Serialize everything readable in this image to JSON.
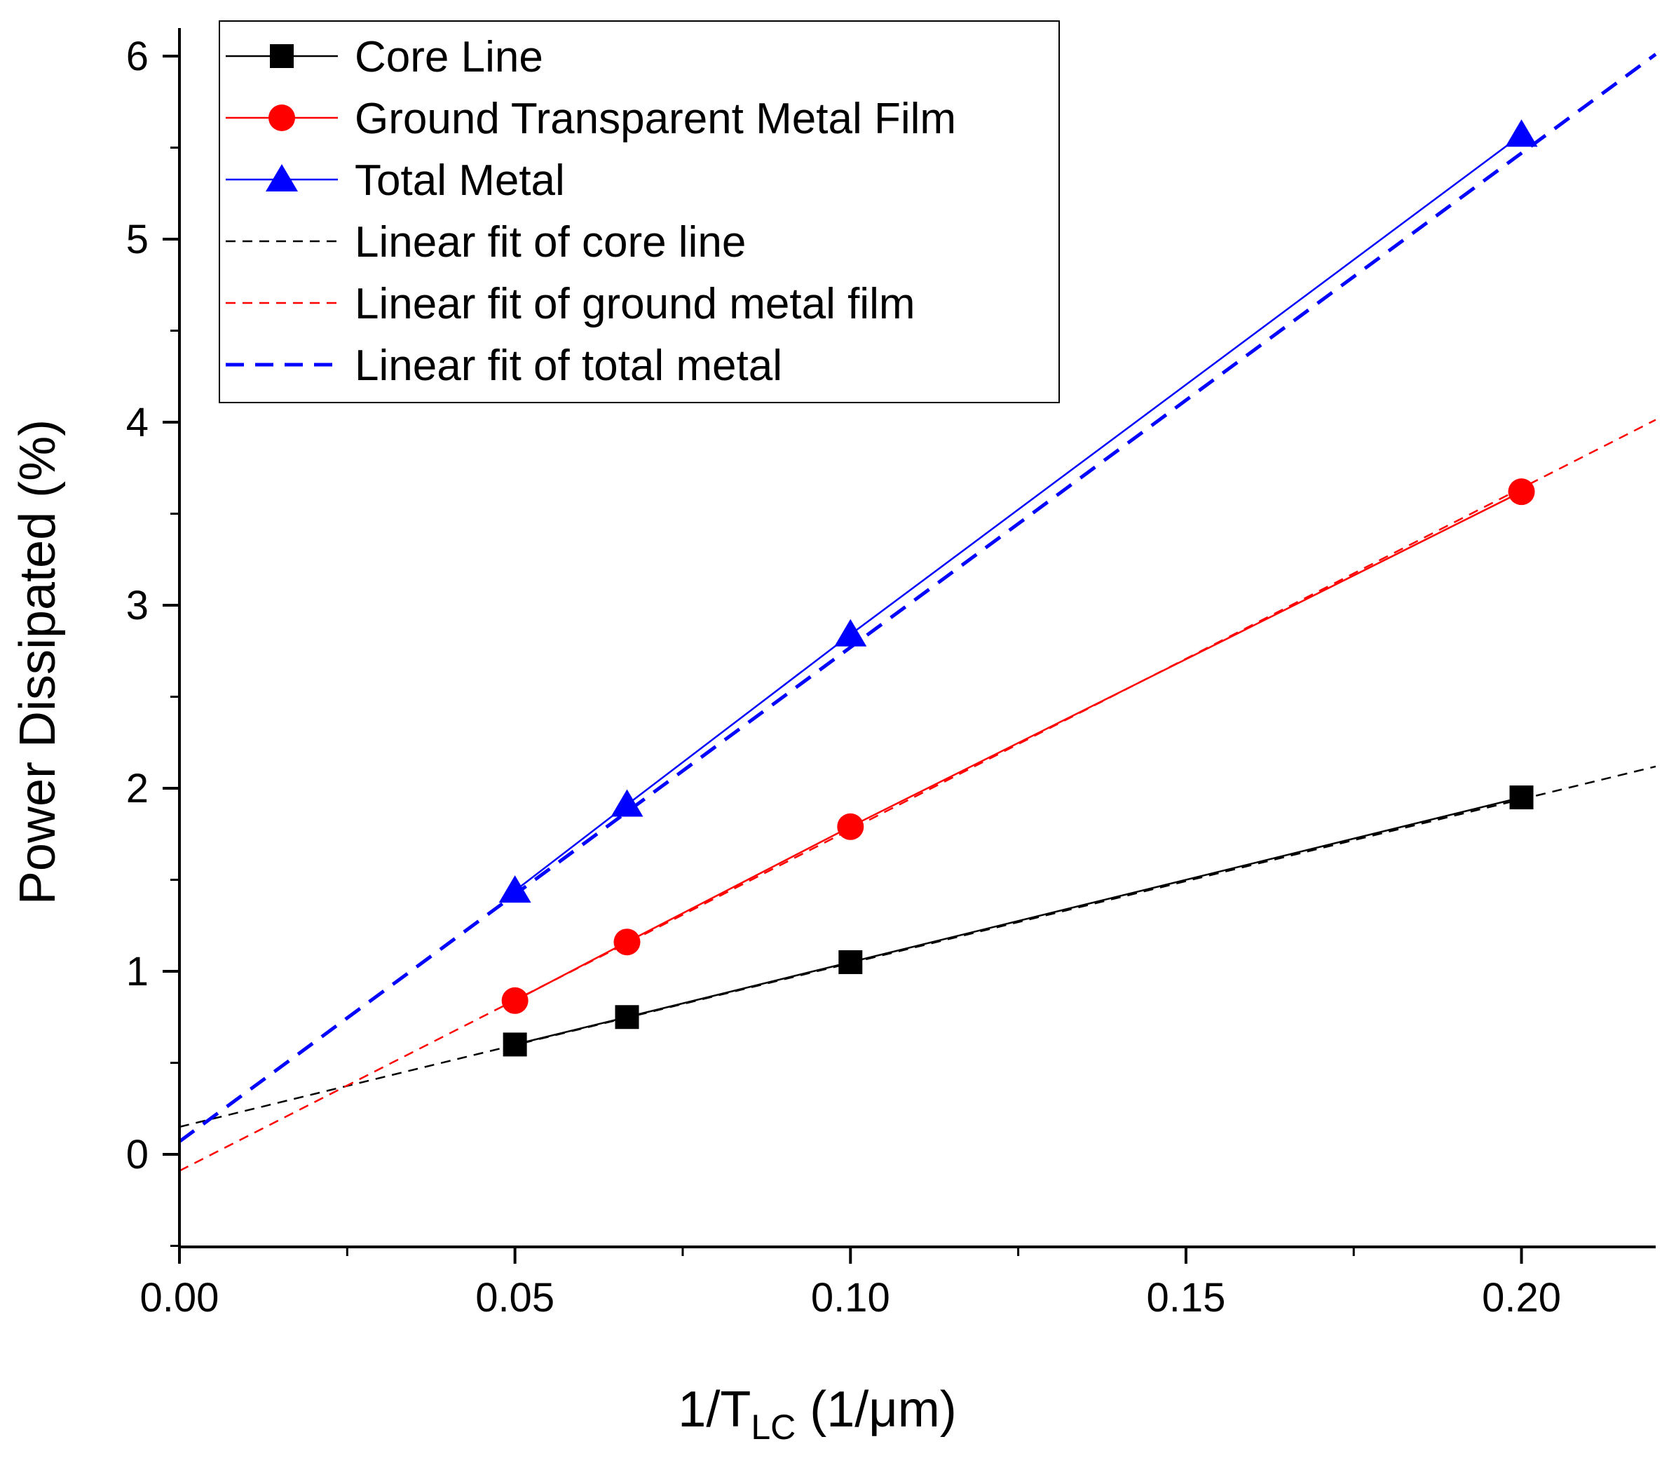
{
  "chart_data": {
    "type": "line",
    "title": "",
    "xlabel": "1/T",
    "xlabel_subscript": "LC",
    "xlabel_unit": " (1/μm)",
    "ylabel": "Power Dissipated (%)",
    "xlim": [
      0,
      0.22
    ],
    "ylim": [
      -0.5,
      6.15
    ],
    "x_ticks": [
      0.0,
      0.05,
      0.1,
      0.15,
      0.2
    ],
    "x_tick_labels": [
      "0.00",
      "0.05",
      "0.10",
      "0.15",
      "0.20"
    ],
    "y_ticks": [
      0,
      1,
      2,
      3,
      4,
      5,
      6
    ],
    "y_tick_labels": [
      "0",
      "1",
      "2",
      "3",
      "4",
      "5",
      "6"
    ],
    "legend_position": "top-left",
    "grid": false,
    "series": [
      {
        "name": "Core Line",
        "kind": "markers",
        "marker": "square",
        "color": "#000000",
        "x": [
          0.05,
          0.0667,
          0.1,
          0.2
        ],
        "y": [
          0.6,
          0.75,
          1.05,
          1.95
        ]
      },
      {
        "name": "Ground Transparent Metal Film",
        "kind": "markers",
        "marker": "circle",
        "color": "#ff0000",
        "x": [
          0.05,
          0.0667,
          0.1,
          0.2
        ],
        "y": [
          0.84,
          1.16,
          1.79,
          3.62
        ]
      },
      {
        "name": "Total Metal",
        "kind": "markers",
        "marker": "triangle",
        "color": "#0000ff",
        "x": [
          0.05,
          0.0667,
          0.1,
          0.2
        ],
        "y": [
          1.44,
          1.91,
          2.84,
          5.57
        ]
      },
      {
        "name": "Linear fit of core line",
        "kind": "fit",
        "color": "#000000",
        "slope": 8.95,
        "intercept": 0.15,
        "x_range": [
          0,
          0.22
        ]
      },
      {
        "name": "Linear fit of ground metal film",
        "kind": "fit",
        "color": "#ff0000",
        "slope": 18.65,
        "intercept": -0.09,
        "x_range": [
          0,
          0.22
        ]
      },
      {
        "name": "Linear fit of total metal",
        "kind": "fit",
        "color": "#0000ff",
        "slope": 27.0,
        "intercept": 0.07,
        "x_range": [
          0,
          0.22
        ]
      }
    ]
  }
}
